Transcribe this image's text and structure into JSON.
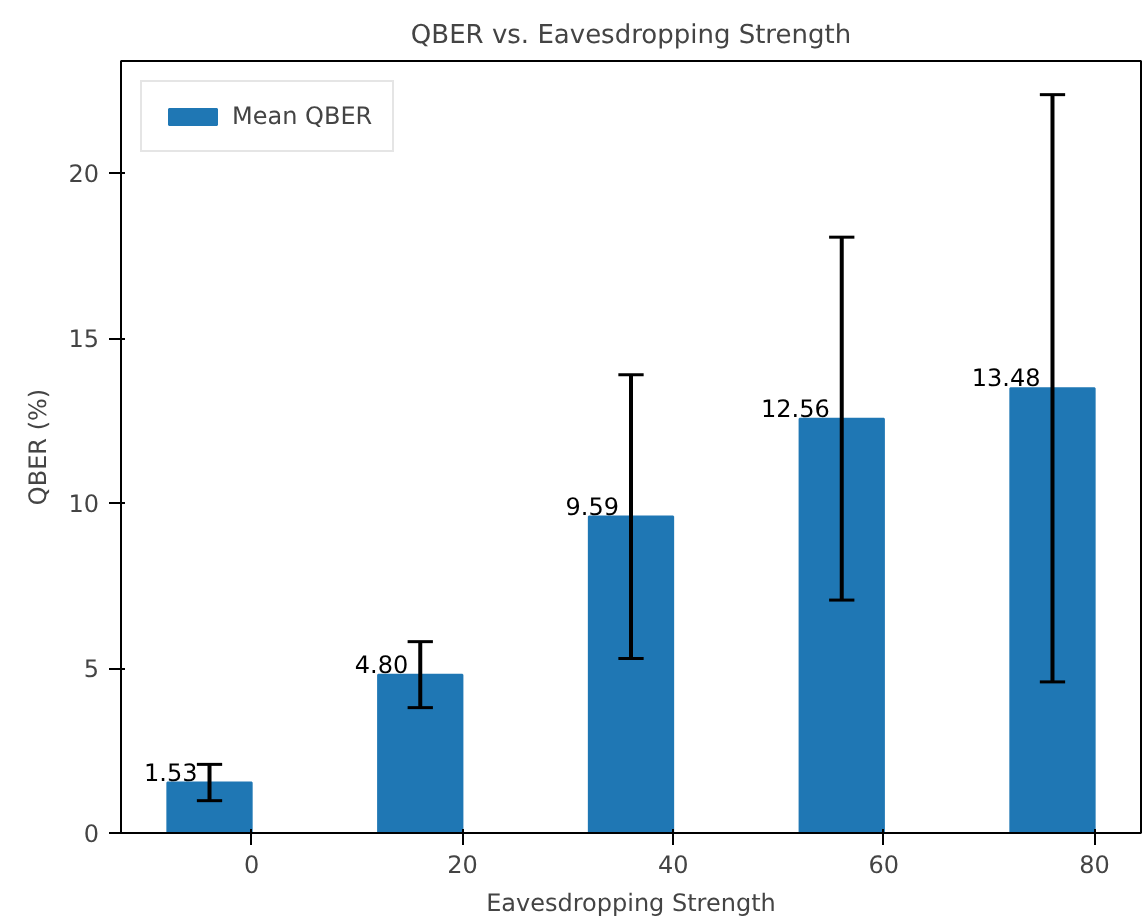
{
  "chart_data": {
    "type": "bar",
    "title": "QBER vs. Eavesdropping Strength",
    "xlabel": "Eavesdropping Strength",
    "ylabel": "QBER (%)",
    "x": [
      -4,
      16,
      36,
      56,
      76
    ],
    "series": [
      {
        "name": "Mean QBER",
        "color": "#1f77b4",
        "values": [
          1.53,
          4.8,
          9.59,
          12.56,
          13.48
        ],
        "errors": [
          0.55,
          1.0,
          4.3,
          5.5,
          8.9
        ],
        "value_labels": [
          "1.53",
          "4.80",
          "9.59",
          "12.56",
          "13.48"
        ]
      }
    ],
    "xlim": [
      -12.4,
      84.4
    ],
    "xticks": [
      0,
      20,
      40,
      60,
      80
    ],
    "ylim": [
      0,
      23.4
    ],
    "yticks": [
      0,
      5,
      10,
      15,
      20
    ],
    "legend": "top left",
    "grid": false
  }
}
